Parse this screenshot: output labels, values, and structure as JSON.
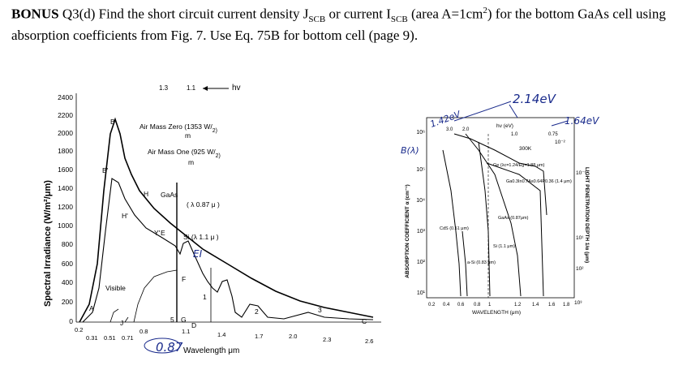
{
  "question": {
    "bonus": "BONUS",
    "text_a": " Q3(d) Find the short circuit current density J",
    "sub_a": "SCB",
    "text_b": " or current I",
    "sub_b": "SCB",
    "text_c": " (area A=1cm",
    "sup_c": "2",
    "text_d": ") for the bottom GaAs cell using absorption coefficients from Fig. 7.  Use Eq. 75B for bottom cell (page 9)."
  },
  "left_figure": {
    "ylabel": "Spectral Irradiance (W/m²/μm)",
    "xlabel": "Wavelength  μm",
    "hv_label": "hv",
    "ytick_labels": [
      "2400",
      "2200",
      "2000",
      "1800",
      "1600",
      "1400",
      "1200",
      "1000",
      "800",
      "600",
      "400",
      "200",
      "0"
    ],
    "xtick_labels_top": [
      "1.3",
      "1.1"
    ],
    "xtick_labels_bottom": [
      "0.2",
      "0.31",
      "0.51",
      "0.71",
      "0.8",
      "1.1",
      "1.4",
      "1.7",
      "2.0",
      "2.3",
      "2.6"
    ],
    "annotations": {
      "am0": "Air Mass Zero (1353 W/",
      "am0_unit": "m",
      "am0_exp": "2)",
      "am1": "Air Mass One (925 W/",
      "am1_unit": "m",
      "am1_exp": "2)",
      "gaas": "GaAs",
      "gaas_val": "( λ  0.87  μ )",
      "si": "Si (λ  1.1  μ )",
      "visible": "Visible",
      "points": [
        "A",
        "B",
        "B'",
        "H",
        "H'",
        "Y",
        "Y'",
        "E",
        "E'",
        "F",
        "G",
        "D",
        "C",
        "1",
        "2",
        "3",
        "3",
        "5",
        "J"
      ],
      "hand_087": "0.87",
      "hand_ei": "EI"
    }
  },
  "right_figure": {
    "ylabel": "ABSORPTION COEFFICIENT α (cm⁻¹)",
    "xlabel": "WAVELENGTH (μm)",
    "right_ylabel": "LIGHT PENETRATION DEPTH 1/α (μm)",
    "top_label": "hν (eV)",
    "top_ticks": [
      "3.0",
      "2.0",
      "1.5",
      "1.0",
      "0.75"
    ],
    "ytick_labels": [
      "10⁶",
      "10⁵",
      "10⁴",
      "10³",
      "10²",
      "10¹"
    ],
    "xtick_labels": [
      "0.2",
      "0.4",
      "0.6",
      "0.8",
      "1",
      "1.2",
      "1.4",
      "1.6",
      "1.8"
    ],
    "right_tick_labels": [
      "10⁻²",
      "10⁻¹",
      "10⁰",
      "10¹",
      "10²",
      "10³"
    ],
    "temp": "300K",
    "curve_labels": {
      "ge": "Ge (λc=1.24/Eg=1.88 μm)",
      "gainas": "Ga0.3In0.7As0.64P0.36 (1.4 μm)",
      "gaas": "GaAs (0.87μm)",
      "si": "Si (1.1 μm)",
      "cds": "CdS (0.51 μm)",
      "asi": "a-Si (0.83 μm)"
    },
    "hand": {
      "ev214": "2.14eV",
      "ev142": "1.42eV",
      "ev1642": "1.64eV",
      "b_lambda": "B(λ)"
    }
  }
}
